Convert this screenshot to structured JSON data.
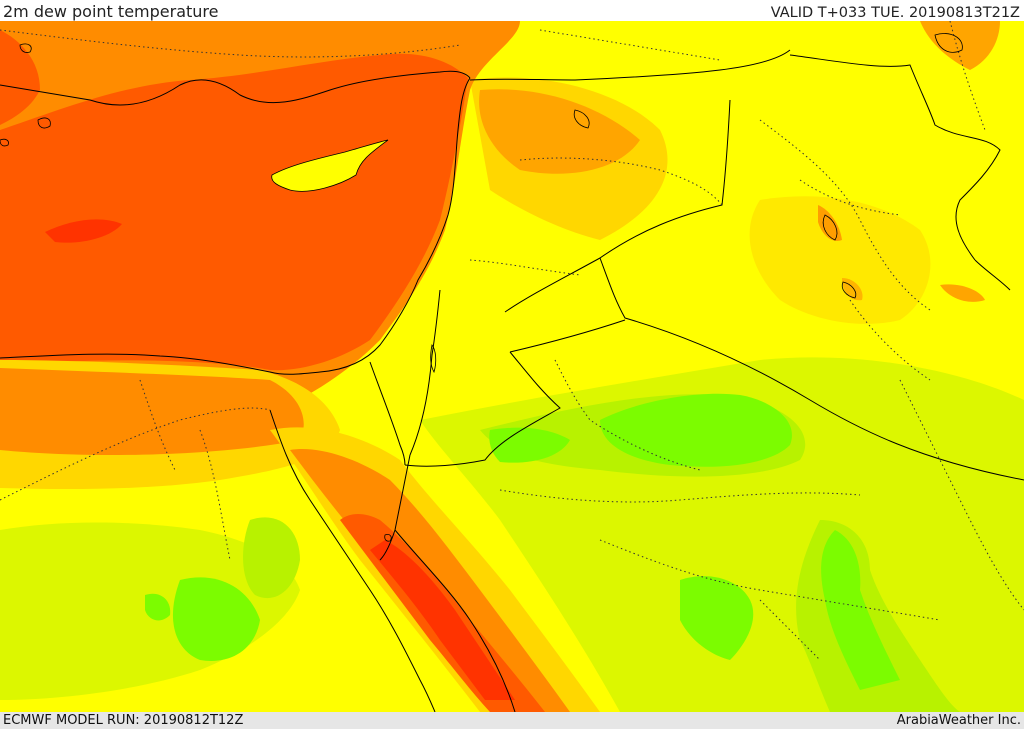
{
  "header": {
    "title": "2m dew point temperature",
    "valid": "VALID T+033 TUE. 20190813T21Z"
  },
  "footer": {
    "model_run": "ECMWF MODEL RUN: 20190812T12Z",
    "credit": "ArabiaWeather Inc."
  },
  "palette": {
    "green": "#7cfc00",
    "light_green": "#b8f200",
    "yellow_green": "#dcf700",
    "yellow": "#ffff00",
    "gold": "#ffd700",
    "orange_light": "#ffa500",
    "orange": "#ff8c00",
    "red_orange": "#ff5a00",
    "red": "#ff3300"
  }
}
